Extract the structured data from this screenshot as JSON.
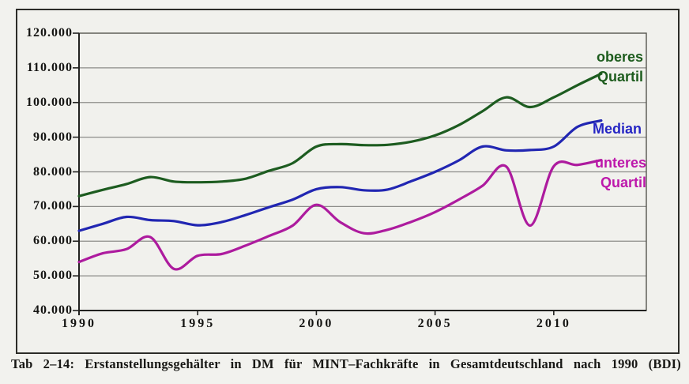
{
  "figure": {
    "caption": "Tab 2–14: Erstanstellungsgehälter in DM für MINT–Fachkräfte in Gesamtdeutschland nach 1990 (BDI)"
  },
  "legend": {
    "oberes": {
      "line1": "oberes",
      "line2": "Quartil"
    },
    "median": {
      "line1": "Median"
    },
    "unteres": {
      "line1": "unteres",
      "line2": "Quartil"
    }
  },
  "chart_data": {
    "type": "line",
    "title": "",
    "xlabel": "",
    "ylabel": "",
    "grid": true,
    "legend_position": "right-inside",
    "xlim": [
      1990,
      2013.9
    ],
    "ylim": [
      40000,
      120000
    ],
    "x": [
      1990,
      1991,
      1992,
      1993,
      1994,
      1995,
      1996,
      1997,
      1998,
      1999,
      2000,
      2001,
      2002,
      2003,
      2004,
      2005,
      2006,
      2007,
      2008,
      2009,
      2010,
      2011,
      2012
    ],
    "series": [
      {
        "name": "oberes Quartil",
        "color": "#1d5c20",
        "values": [
          73000,
          74800,
          76500,
          78500,
          77200,
          77000,
          77200,
          78000,
          80300,
          82500,
          87300,
          88000,
          87700,
          87800,
          88700,
          90500,
          93500,
          97500,
          101500,
          98700,
          101500,
          105000,
          108300
        ]
      },
      {
        "name": "Median",
        "color": "#2126b2",
        "values": [
          63000,
          65000,
          67000,
          66100,
          65800,
          64600,
          65500,
          67500,
          69800,
          72000,
          75000,
          75600,
          74700,
          74900,
          77300,
          80000,
          83300,
          87300,
          86200,
          86300,
          87300,
          93000,
          94800
        ]
      },
      {
        "name": "unteres Quartil",
        "color": "#ad1b9e",
        "values": [
          54000,
          56500,
          57700,
          61200,
          52000,
          55800,
          56300,
          58700,
          61500,
          64500,
          70500,
          65500,
          62300,
          63300,
          65600,
          68400,
          72000,
          76000,
          81500,
          64500,
          81600,
          82000,
          83400
        ]
      }
    ],
    "y_ticks": [
      {
        "value": 40000,
        "label": "40.000"
      },
      {
        "value": 50000,
        "label": "50.000"
      },
      {
        "value": 60000,
        "label": "60.000"
      },
      {
        "value": 70000,
        "label": "70.000"
      },
      {
        "value": 80000,
        "label": "80.000"
      },
      {
        "value": 90000,
        "label": "90.000"
      },
      {
        "value": 100000,
        "label": "100.000"
      },
      {
        "value": 110000,
        "label": "110.000"
      },
      {
        "value": 120000,
        "label": "120.000"
      }
    ],
    "x_ticks": [
      {
        "value": 1990,
        "label": "1990"
      },
      {
        "value": 1995,
        "label": "1995"
      },
      {
        "value": 2000,
        "label": "2000"
      },
      {
        "value": 2005,
        "label": "2005"
      },
      {
        "value": 2010,
        "label": "2010"
      }
    ]
  }
}
